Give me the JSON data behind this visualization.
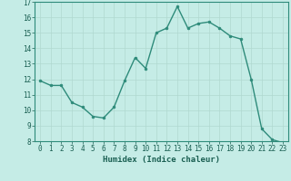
{
  "x": [
    0,
    1,
    2,
    3,
    4,
    5,
    6,
    7,
    8,
    9,
    10,
    11,
    12,
    13,
    14,
    15,
    16,
    17,
    18,
    19,
    20,
    21,
    22,
    23
  ],
  "y": [
    11.9,
    11.6,
    11.6,
    10.5,
    10.2,
    9.6,
    9.5,
    10.2,
    11.9,
    13.4,
    12.7,
    15.0,
    15.3,
    16.7,
    15.3,
    15.6,
    15.7,
    15.3,
    14.8,
    14.6,
    12.0,
    8.8,
    8.1,
    7.9
  ],
  "line_color": "#2e8b7a",
  "marker": "o",
  "marker_size": 2.0,
  "linewidth": 1.0,
  "bg_color": "#c5ece6",
  "grid_color": "#b0d8d0",
  "xlabel": "Humidex (Indice chaleur)",
  "ylim": [
    8,
    17
  ],
  "xlim": [
    -0.5,
    23.5
  ],
  "yticks": [
    8,
    9,
    10,
    11,
    12,
    13,
    14,
    15,
    16,
    17
  ],
  "xticks": [
    0,
    1,
    2,
    3,
    4,
    5,
    6,
    7,
    8,
    9,
    10,
    11,
    12,
    13,
    14,
    15,
    16,
    17,
    18,
    19,
    20,
    21,
    22,
    23
  ],
  "tick_fontsize": 5.5,
  "xlabel_fontsize": 6.5,
  "tick_color": "#1a5f52",
  "spine_color": "#2e8b7a"
}
